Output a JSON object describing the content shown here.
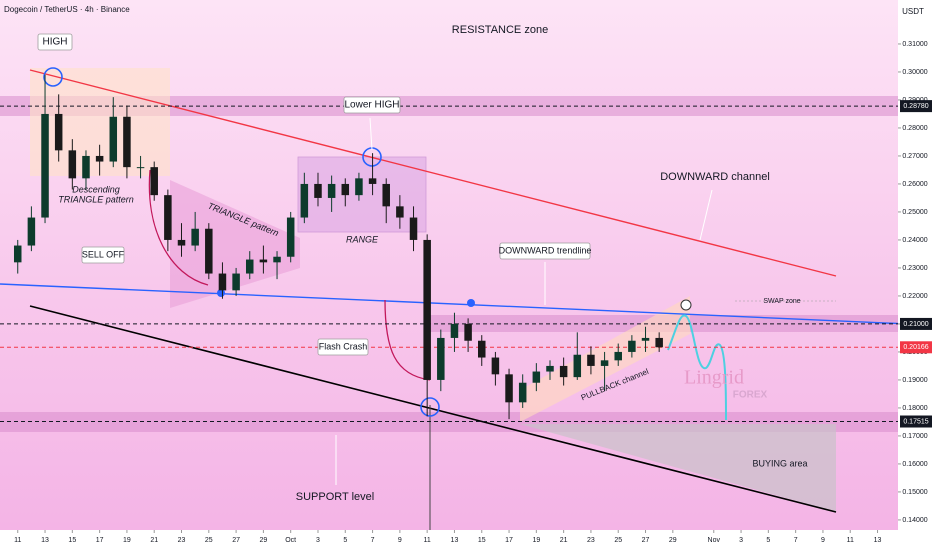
{
  "header": {
    "symbol": "Dogecoin / TetherUS · 4h · Binance",
    "currency": "USDT"
  },
  "chart_data": {
    "type": "candlestick",
    "x": [
      0,
      1,
      2,
      3,
      4,
      5,
      6,
      7,
      8,
      9,
      10,
      11,
      12,
      13,
      14,
      15,
      16,
      17,
      18,
      19,
      20,
      21,
      22,
      23,
      24,
      25,
      26,
      27,
      28,
      29,
      30,
      31,
      32,
      33,
      34,
      35,
      36,
      37,
      38,
      39,
      40,
      41,
      42,
      43,
      44,
      45,
      46,
      47
    ],
    "open": [
      0.232,
      0.238,
      0.248,
      0.285,
      0.272,
      0.262,
      0.27,
      0.268,
      0.284,
      0.266,
      0.266,
      0.256,
      0.24,
      0.238,
      0.244,
      0.228,
      0.222,
      0.228,
      0.233,
      0.232,
      0.234,
      0.248,
      0.26,
      0.255,
      0.26,
      0.256,
      0.262,
      0.26,
      0.252,
      0.248,
      0.24,
      0.19,
      0.205,
      0.21,
      0.204,
      0.198,
      0.192,
      0.182,
      0.189,
      0.193,
      0.195,
      0.191,
      0.199,
      0.195,
      0.197,
      0.2,
      0.204,
      0.205
    ],
    "high": [
      0.24,
      0.252,
      0.299,
      0.292,
      0.276,
      0.272,
      0.274,
      0.291,
      0.288,
      0.27,
      0.268,
      0.258,
      0.246,
      0.25,
      0.246,
      0.232,
      0.23,
      0.236,
      0.238,
      0.236,
      0.25,
      0.264,
      0.264,
      0.263,
      0.262,
      0.264,
      0.271,
      0.262,
      0.256,
      0.252,
      0.242,
      0.208,
      0.214,
      0.212,
      0.206,
      0.2,
      0.194,
      0.192,
      0.196,
      0.197,
      0.198,
      0.207,
      0.202,
      0.2,
      0.203,
      0.206,
      0.209,
      0.207
    ],
    "low": [
      0.228,
      0.236,
      0.246,
      0.268,
      0.258,
      0.258,
      0.263,
      0.266,
      0.262,
      0.262,
      0.254,
      0.236,
      0.234,
      0.236,
      0.226,
      0.219,
      0.22,
      0.226,
      0.228,
      0.226,
      0.232,
      0.246,
      0.252,
      0.25,
      0.252,
      0.254,
      0.256,
      0.246,
      0.244,
      0.236,
      0.177,
      0.186,
      0.2,
      0.2,
      0.195,
      0.188,
      0.176,
      0.18,
      0.186,
      0.19,
      0.188,
      0.19,
      0.192,
      0.186,
      0.195,
      0.198,
      0.2,
      0.2
    ],
    "close": [
      0.238,
      0.248,
      0.285,
      0.272,
      0.262,
      0.27,
      0.268,
      0.284,
      0.266,
      0.266,
      0.256,
      0.24,
      0.238,
      0.244,
      0.228,
      0.222,
      0.228,
      0.233,
      0.232,
      0.234,
      0.248,
      0.26,
      0.255,
      0.26,
      0.256,
      0.262,
      0.26,
      0.252,
      0.248,
      0.24,
      0.19,
      0.205,
      0.21,
      0.204,
      0.198,
      0.192,
      0.182,
      0.189,
      0.193,
      0.195,
      0.191,
      0.199,
      0.195,
      0.197,
      0.2,
      0.204,
      0.205,
      0.20166
    ],
    "up_color": "#0d3b2c",
    "down_color": "#1a1a1a",
    "xlim": [
      -1.3,
      64.5
    ],
    "xticks": [
      {
        "value": 0,
        "label": "11"
      },
      {
        "value": 2,
        "label": "13"
      },
      {
        "value": 4,
        "label": "15"
      },
      {
        "value": 6,
        "label": "17"
      },
      {
        "value": 8,
        "label": "19"
      },
      {
        "value": 10,
        "label": "21"
      },
      {
        "value": 12,
        "label": "23"
      },
      {
        "value": 14,
        "label": "25"
      },
      {
        "value": 16,
        "label": "27"
      },
      {
        "value": 18,
        "label": "29"
      },
      {
        "value": 20,
        "label": "Oct"
      },
      {
        "value": 22,
        "label": "3"
      },
      {
        "value": 24,
        "label": "5"
      },
      {
        "value": 26,
        "label": "7"
      },
      {
        "value": 28,
        "label": "9"
      },
      {
        "value": 30,
        "label": "11"
      },
      {
        "value": 32,
        "label": "13"
      },
      {
        "value": 34,
        "label": "15"
      },
      {
        "value": 36,
        "label": "17"
      },
      {
        "value": 38,
        "label": "19"
      },
      {
        "value": 40,
        "label": "21"
      },
      {
        "value": 42,
        "label": "23"
      },
      {
        "value": 44,
        "label": "25"
      },
      {
        "value": 46,
        "label": "27"
      },
      {
        "value": 48,
        "label": "29"
      },
      {
        "value": 51,
        "label": "Nov"
      },
      {
        "value": 53,
        "label": "3"
      },
      {
        "value": 55,
        "label": "5"
      },
      {
        "value": 57,
        "label": "7"
      },
      {
        "value": 59,
        "label": "9"
      },
      {
        "value": 61,
        "label": "11"
      },
      {
        "value": 63,
        "label": "13"
      }
    ],
    "ylim": [
      0.1364,
      0.3257
    ],
    "yticks": [
      {
        "value": 0.14,
        "label": "0.14000"
      },
      {
        "value": 0.15,
        "label": "0.15000"
      },
      {
        "value": 0.16,
        "label": "0.16000"
      },
      {
        "value": 0.17,
        "label": "0.17000"
      },
      {
        "value": 0.18,
        "label": "0.18000"
      },
      {
        "value": 0.19,
        "label": "0.19000"
      },
      {
        "value": 0.2,
        "label": "0.20000"
      },
      {
        "value": 0.21,
        "label": "0.21000"
      },
      {
        "value": 0.22,
        "label": "0.22000"
      },
      {
        "value": 0.23,
        "label": "0.23000"
      },
      {
        "value": 0.24,
        "label": "0.24000"
      },
      {
        "value": 0.25,
        "label": "0.25000"
      },
      {
        "value": 0.26,
        "label": "0.26000"
      },
      {
        "value": 0.27,
        "label": "0.27000"
      },
      {
        "value": 0.28,
        "label": "0.28000"
      },
      {
        "value": 0.29,
        "label": "0.29000"
      },
      {
        "value": 0.3,
        "label": "0.30000"
      },
      {
        "value": 0.31,
        "label": "0.31000"
      }
    ],
    "levels": [
      {
        "value": 0.2878,
        "label": "0.28780",
        "color": "#131722"
      },
      {
        "value": 0.21,
        "label": "0.21000",
        "color": "#131722"
      },
      {
        "value": 0.20166,
        "label": "0.20166",
        "color": "#f23645"
      },
      {
        "value": 0.17515,
        "label": "0.17515",
        "color": "#131722"
      }
    ],
    "annotations": [
      "HIGH",
      "RESISTANCE zone",
      "Lower HIGH",
      "DOWNWARD channel",
      "Descending",
      "TRIANGLE pattern",
      "TRIANGLE pattern",
      "SELL OFF",
      "RANGE",
      "DOWNWARD trendline",
      "SWAP zone",
      "Flash Crash",
      "PULLBACK channel",
      "Lingrid",
      "FOREX",
      "BUYING area",
      "SUPPORT level"
    ]
  }
}
